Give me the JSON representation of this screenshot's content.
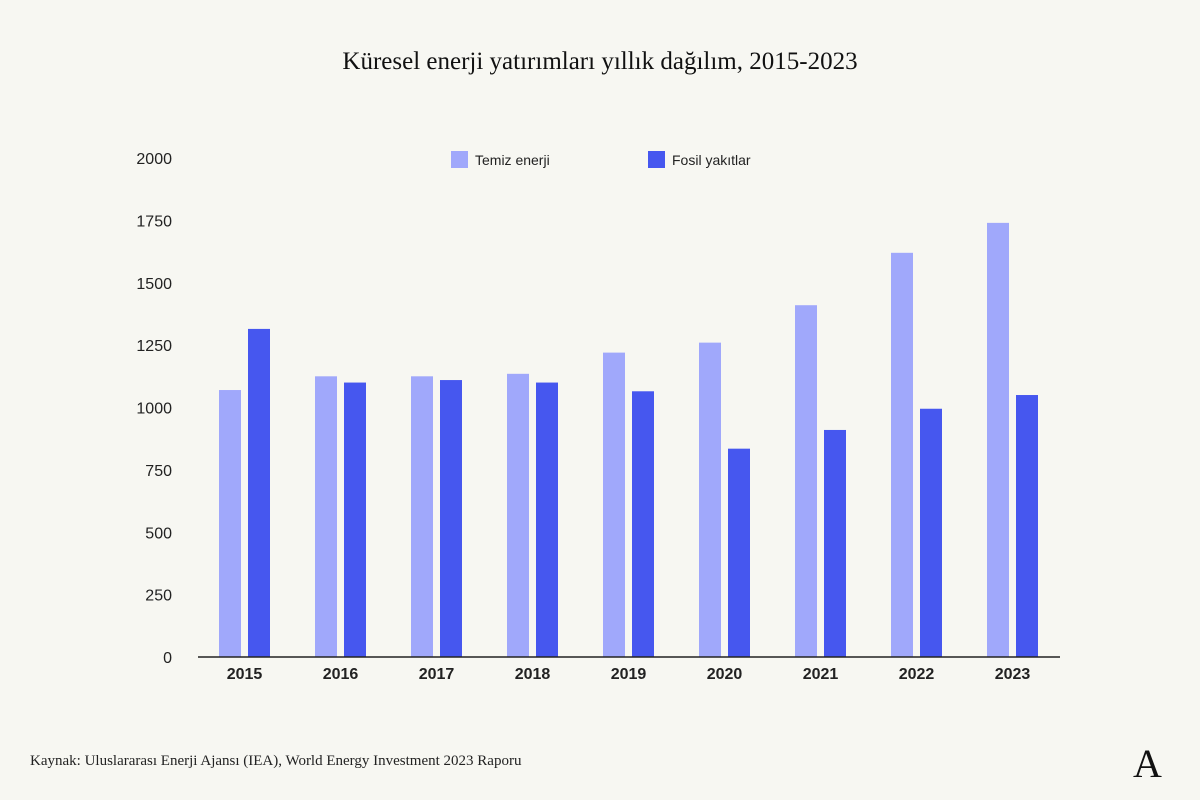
{
  "title": "Küresel enerji yatırımları yıllık dağılım, 2015-2023",
  "source": "Kaynak: Uluslararası Enerji Ajansı (IEA), World Energy Investment 2023 Raporu",
  "logo_text": "A",
  "colors": {
    "background": "#f7f7f2",
    "clean": "#a0a8fb",
    "fossil": "#4657ef"
  },
  "chart_data": {
    "type": "bar",
    "categories": [
      "2015",
      "2016",
      "2017",
      "2018",
      "2019",
      "2020",
      "2021",
      "2022",
      "2023"
    ],
    "series": [
      {
        "name": "Temiz enerji",
        "values": [
          1070,
          1125,
          1125,
          1135,
          1220,
          1260,
          1410,
          1620,
          1740
        ]
      },
      {
        "name": "Fosil yakıtlar",
        "values": [
          1315,
          1100,
          1110,
          1100,
          1065,
          835,
          910,
          995,
          1050
        ]
      }
    ],
    "yticks": [
      "0",
      "250",
      "500",
      "750",
      "1000",
      "1250",
      "1500",
      "1750",
      "2000"
    ],
    "ylim": [
      0,
      2000
    ],
    "xlabel": "",
    "ylabel": "",
    "grid": false,
    "legend_position": "top-center"
  }
}
